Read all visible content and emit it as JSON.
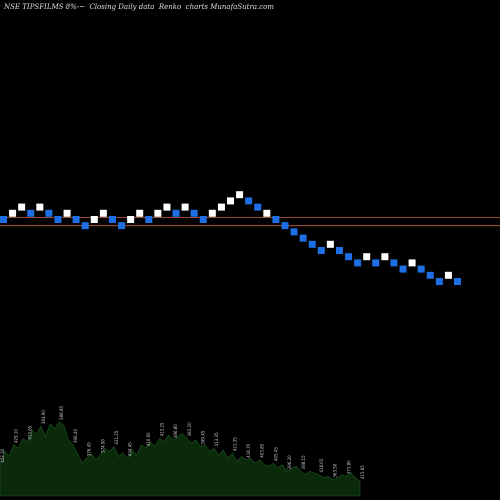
{
  "header": {
    "title": "NSE TIPSFILMS 8%-~  Closing Daily data  Renko  charts MunafaSutra.com"
  },
  "colors": {
    "background": "#000000",
    "up_brick": "#ffffff",
    "down_brick": "#1e6fe6",
    "reference_line": "#c8603a",
    "volume_fill": "#0b2a0b",
    "volume_edge": "#1f5a1f"
  },
  "chart_data": {
    "type": "renko",
    "title": "NSE TIPSFILMS 8%-~  Closing Daily data  Renko  charts MunafaSutra.com",
    "bricks": [
      {
        "dir": "down",
        "level": 0
      },
      {
        "dir": "up",
        "level": 1
      },
      {
        "dir": "up",
        "level": 2
      },
      {
        "dir": "down",
        "level": 1
      },
      {
        "dir": "up",
        "level": 2
      },
      {
        "dir": "down",
        "level": 1
      },
      {
        "dir": "down",
        "level": 0
      },
      {
        "dir": "up",
        "level": 1
      },
      {
        "dir": "down",
        "level": 0
      },
      {
        "dir": "down",
        "level": -1
      },
      {
        "dir": "up",
        "level": 0
      },
      {
        "dir": "up",
        "level": 1
      },
      {
        "dir": "down",
        "level": 0
      },
      {
        "dir": "down",
        "level": -1
      },
      {
        "dir": "up",
        "level": 0
      },
      {
        "dir": "up",
        "level": 1
      },
      {
        "dir": "down",
        "level": 0
      },
      {
        "dir": "up",
        "level": 1
      },
      {
        "dir": "up",
        "level": 2
      },
      {
        "dir": "down",
        "level": 1
      },
      {
        "dir": "up",
        "level": 2
      },
      {
        "dir": "down",
        "level": 1
      },
      {
        "dir": "down",
        "level": 0
      },
      {
        "dir": "up",
        "level": 1
      },
      {
        "dir": "up",
        "level": 2
      },
      {
        "dir": "up",
        "level": 3
      },
      {
        "dir": "up",
        "level": 4
      },
      {
        "dir": "down",
        "level": 3
      },
      {
        "dir": "down",
        "level": 2
      },
      {
        "dir": "up",
        "level": 1
      },
      {
        "dir": "down",
        "level": 0
      },
      {
        "dir": "down",
        "level": -1
      },
      {
        "dir": "down",
        "level": -2
      },
      {
        "dir": "down",
        "level": -3
      },
      {
        "dir": "down",
        "level": -4
      },
      {
        "dir": "down",
        "level": -5
      },
      {
        "dir": "up",
        "level": -4
      },
      {
        "dir": "down",
        "level": -5
      },
      {
        "dir": "down",
        "level": -6
      },
      {
        "dir": "down",
        "level": -7
      },
      {
        "dir": "up",
        "level": -6
      },
      {
        "dir": "down",
        "level": -7
      },
      {
        "dir": "up",
        "level": -6
      },
      {
        "dir": "down",
        "level": -7
      },
      {
        "dir": "down",
        "level": -8
      },
      {
        "dir": "up",
        "level": -7
      },
      {
        "dir": "down",
        "level": -8
      },
      {
        "dir": "down",
        "level": -9
      },
      {
        "dir": "down",
        "level": -10
      },
      {
        "dir": "up",
        "level": -9
      },
      {
        "dir": "down",
        "level": -10
      }
    ],
    "reference_lines": [
      {
        "level": 0.3
      },
      {
        "level": -1.0
      }
    ],
    "volume": {
      "values": [
        38,
        55,
        48,
        62,
        58,
        70,
        66,
        80,
        75,
        85,
        72,
        88,
        82,
        90,
        86,
        68,
        62,
        52,
        40,
        46,
        52,
        44,
        50,
        58,
        54,
        60,
        48,
        52,
        46,
        56,
        50,
        62,
        58,
        66,
        60,
        70,
        66,
        74,
        68,
        72,
        76,
        70,
        64,
        68,
        60,
        62,
        54,
        58,
        50,
        56,
        46,
        52,
        42,
        48,
        44,
        46,
        40,
        44,
        38,
        36,
        40,
        34,
        38,
        30,
        34,
        36,
        30,
        26,
        30,
        28,
        26,
        22,
        24,
        20,
        22,
        26,
        24,
        28,
        22,
        18
      ],
      "labels": [
        "422.30",
        "429.10",
        "413.65",
        "364.90",
        "388.85",
        "396.40",
        "376.45",
        "374.90",
        "431.25",
        "434.45",
        "410.95",
        "413.25",
        "386.80",
        "382.20",
        "399.45",
        "413.35",
        "421.35",
        "418.70",
        "403.80",
        "405.45",
        "396.20",
        "388.15",
        "418.65",
        "363.50",
        "373.80",
        "415.65"
      ]
    }
  }
}
